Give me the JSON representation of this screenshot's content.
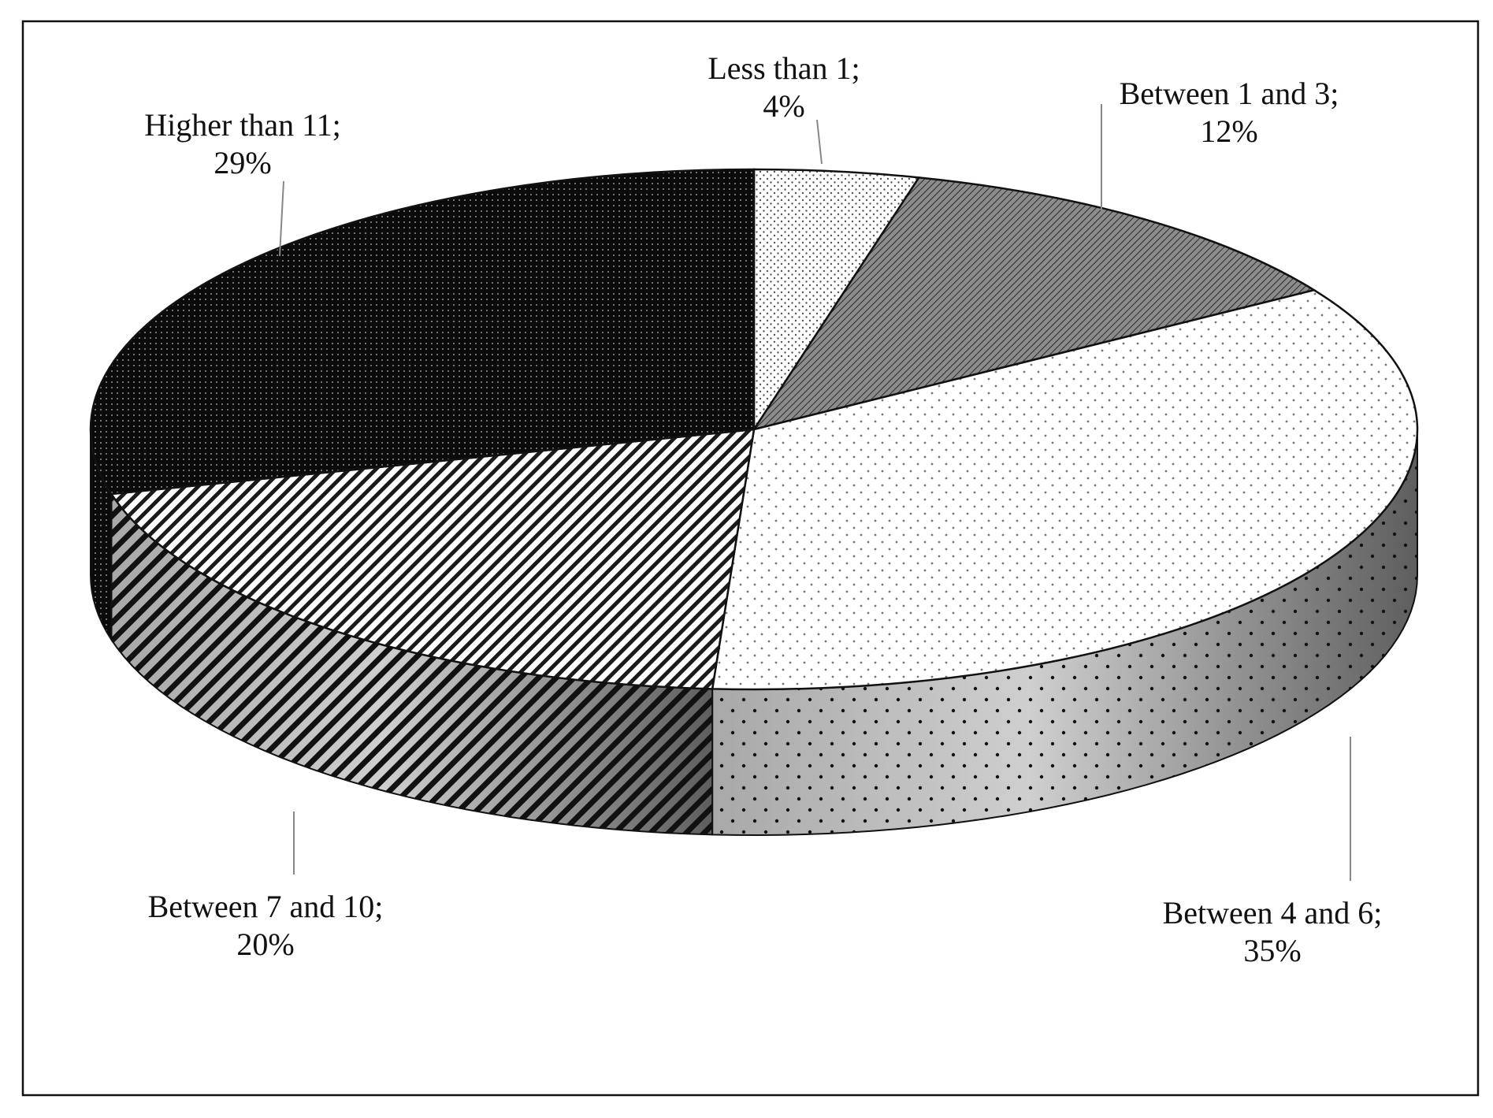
{
  "chart_data": {
    "type": "pie",
    "style": "3d",
    "title": "",
    "slices": [
      {
        "label": "Less than 1",
        "value": 4,
        "label_line1": "Less than 1;",
        "label_line2": "4%",
        "pattern": "fine-dots-light"
      },
      {
        "label": "Between 1 and 3",
        "value": 12,
        "label_line1": "Between 1 and 3;",
        "label_line2": "12%",
        "pattern": "dense-diagonal-gray"
      },
      {
        "label": "Between 4 and 6",
        "value": 35,
        "label_line1": "Between 4 and 6;",
        "label_line2": "35%",
        "pattern": "sparse-dots-light"
      },
      {
        "label": "Between 7 and 10",
        "value": 20,
        "label_line1": "Between 7 and 10;",
        "label_line2": "20%",
        "pattern": "diagonal-stripes"
      },
      {
        "label": "Higher than 11",
        "value": 29,
        "label_line1": "Higher than 11;",
        "label_line2": "29%",
        "pattern": "dark-dotted-black"
      }
    ],
    "unit": "%",
    "legend": "none",
    "border": true
  }
}
